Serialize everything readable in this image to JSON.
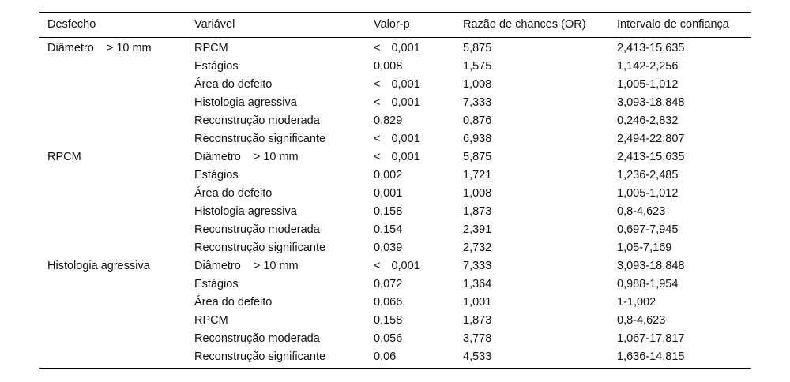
{
  "table": {
    "headers": [
      "Desfecho",
      "Variável",
      "Valor-p",
      "Razão de chances (OR)",
      "Intervalo de confiança"
    ],
    "rows": [
      {
        "outcome": "Diâmetro",
        "outcome_suffix": "> 10 mm",
        "variable": "RPCM",
        "variable_suffix": "",
        "p_prefix": "<",
        "p": "0,001",
        "or": "5,875",
        "ci": "2,413-15,635"
      },
      {
        "outcome": "",
        "outcome_suffix": "",
        "variable": "Estágios",
        "variable_suffix": "",
        "p_prefix": "",
        "p": "0,008",
        "or": "1,575",
        "ci": "1,142-2,256"
      },
      {
        "outcome": "",
        "outcome_suffix": "",
        "variable": "Área do defeito",
        "variable_suffix": "",
        "p_prefix": "<",
        "p": "0,001",
        "or": "1,008",
        "ci": "1,005-1,012"
      },
      {
        "outcome": "",
        "outcome_suffix": "",
        "variable": "Histologia agressiva",
        "variable_suffix": "",
        "p_prefix": "<",
        "p": "0,001",
        "or": "7,333",
        "ci": "3,093-18,848"
      },
      {
        "outcome": "",
        "outcome_suffix": "",
        "variable": "Reconstrução moderada",
        "variable_suffix": "",
        "p_prefix": "",
        "p": "0,829",
        "or": "0,876",
        "ci": "0,246-2,832"
      },
      {
        "outcome": "",
        "outcome_suffix": "",
        "variable": "Reconstrução significante",
        "variable_suffix": "",
        "p_prefix": "<",
        "p": "0,001",
        "or": "6,938",
        "ci": "2,494-22,807"
      },
      {
        "outcome": "RPCM",
        "outcome_suffix": "",
        "variable": "Diâmetro",
        "variable_suffix": "> 10 mm",
        "p_prefix": "<",
        "p": "0,001",
        "or": "5,875",
        "ci": "2,413-15,635"
      },
      {
        "outcome": "",
        "outcome_suffix": "",
        "variable": "Estágios",
        "variable_suffix": "",
        "p_prefix": "",
        "p": "0,002",
        "or": "1,721",
        "ci": "1,236-2,485"
      },
      {
        "outcome": "",
        "outcome_suffix": "",
        "variable": "Área do defeito",
        "variable_suffix": "",
        "p_prefix": "",
        "p": "0,001",
        "or": "1,008",
        "ci": "1,005-1,012"
      },
      {
        "outcome": "",
        "outcome_suffix": "",
        "variable": "Histologia agressiva",
        "variable_suffix": "",
        "p_prefix": "",
        "p": "0,158",
        "or": "1,873",
        "ci": "0,8-4,623"
      },
      {
        "outcome": "",
        "outcome_suffix": "",
        "variable": "Reconstrução moderada",
        "variable_suffix": "",
        "p_prefix": "",
        "p": "0,154",
        "or": "2,391",
        "ci": "0,697-7,945"
      },
      {
        "outcome": "",
        "outcome_suffix": "",
        "variable": "Reconstrução significante",
        "variable_suffix": "",
        "p_prefix": "",
        "p": "0,039",
        "or": "2,732",
        "ci": "1,05-7,169"
      },
      {
        "outcome": "Histologia agressiva",
        "outcome_suffix": "",
        "variable": "Diâmetro",
        "variable_suffix": "> 10 mm",
        "p_prefix": "<",
        "p": "0,001",
        "or": "7,333",
        "ci": "3,093-18,848"
      },
      {
        "outcome": "",
        "outcome_suffix": "",
        "variable": "Estágios",
        "variable_suffix": "",
        "p_prefix": "",
        "p": "0,072",
        "or": "1,364",
        "ci": "0,988-1,954"
      },
      {
        "outcome": "",
        "outcome_suffix": "",
        "variable": "Área do defeito",
        "variable_suffix": "",
        "p_prefix": "",
        "p": "0,066",
        "or": "1,001",
        "ci": "1-1,002"
      },
      {
        "outcome": "",
        "outcome_suffix": "",
        "variable": "RPCM",
        "variable_suffix": "",
        "p_prefix": "",
        "p": "0,158",
        "or": "1,873",
        "ci": "0,8-4,623"
      },
      {
        "outcome": "",
        "outcome_suffix": "",
        "variable": "Reconstrução moderada",
        "variable_suffix": "",
        "p_prefix": "",
        "p": "0,056",
        "or": "3,778",
        "ci": "1,067-17,817"
      },
      {
        "outcome": "",
        "outcome_suffix": "",
        "variable": "Reconstrução significante",
        "variable_suffix": "",
        "p_prefix": "",
        "p": "0,06",
        "or": "4,533",
        "ci": "1,636-14,815"
      }
    ]
  }
}
